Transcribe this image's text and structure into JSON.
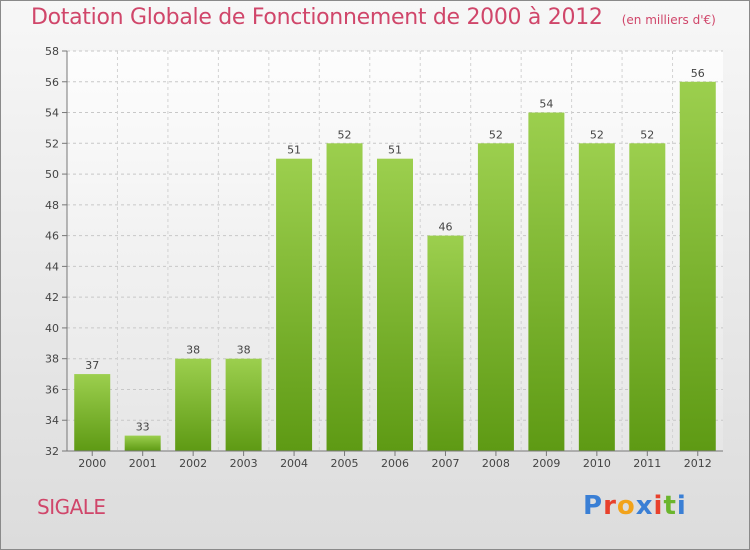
{
  "header": {
    "title": "Dotation Globale de Fonctionnement de 2000 à 2012",
    "unit": "(en milliers d'€)"
  },
  "commune": "SIGALE",
  "logo": {
    "text": "Proxiti",
    "letter_colors": [
      "#3a7fd5",
      "#e8412c",
      "#f2a31b",
      "#3a7fd5",
      "#e8412c",
      "#6bb52c",
      "#3a7fd5"
    ]
  },
  "chart_data": {
    "type": "bar",
    "categories": [
      "2000",
      "2001",
      "2002",
      "2003",
      "2004",
      "2005",
      "2006",
      "2007",
      "2008",
      "2009",
      "2010",
      "2011",
      "2012"
    ],
    "values": [
      37,
      33,
      38,
      38,
      51,
      52,
      51,
      46,
      52,
      54,
      52,
      52,
      56
    ],
    "title": "Dotation Globale de Fonctionnement de 2000 à 2012",
    "xlabel": "",
    "ylabel": "",
    "ylim": [
      32,
      58
    ],
    "yticks": [
      32,
      34,
      36,
      38,
      40,
      42,
      44,
      46,
      48,
      50,
      52,
      54,
      56,
      58
    ],
    "grid": true,
    "bar_color_top": "#9ccf4e",
    "bar_color_bottom": "#5e9a14"
  }
}
